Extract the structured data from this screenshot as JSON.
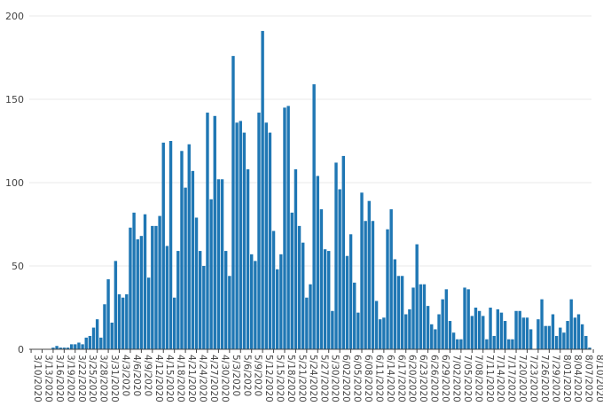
{
  "chart_data": {
    "type": "bar",
    "title": "",
    "xlabel": "",
    "ylabel": "",
    "ylim": [
      0,
      200
    ],
    "yticks": [
      0,
      50,
      100,
      150,
      200
    ],
    "grid": "horizontal",
    "bar_color": "#1f77b4",
    "start_date": "2020-03-10",
    "xtick_labels": [
      "3/10/2020",
      "3/13/2020",
      "3/16/2020",
      "3/19/2020",
      "3/22/2020",
      "3/25/2020",
      "3/28/2020",
      "3/31/2020",
      "4/3/2020",
      "4/6/2020",
      "4/9/2020",
      "4/12/2020",
      "4/15/2020",
      "4/18/2020",
      "4/21/2020",
      "4/24/2020",
      "4/27/2020",
      "4/30/2020",
      "5/3/2020",
      "5/6/2020",
      "5/9/2020",
      "5/12/2020",
      "5/15/2020",
      "5/18/2020",
      "5/21/2020",
      "5/24/2020",
      "5/27/2020",
      "5/30/2020",
      "6/02/2020",
      "6/05/2020",
      "6/08/2020",
      "6/11/2020",
      "6/14/2020",
      "6/17/2020",
      "6/20/2020",
      "6/23/2020",
      "6/26/2020",
      "6/29/2020",
      "7/02/2020",
      "7/05/2020",
      "7/08/2020",
      "7/11/2020",
      "7/14/2020",
      "7/17/2020",
      "7/20/2020",
      "7/23/2020",
      "7/26/2020",
      "7/29/2020",
      "8/01/2020",
      "8/04/2020",
      "8/07/2020",
      "8/10/2020"
    ],
    "values": [
      0,
      0,
      0,
      0,
      0,
      0,
      1,
      2,
      1,
      1,
      1,
      3,
      3,
      4,
      3,
      7,
      8,
      13,
      18,
      7,
      27,
      42,
      16,
      53,
      33,
      31,
      33,
      73,
      82,
      66,
      68,
      81,
      43,
      74,
      74,
      80,
      124,
      62,
      125,
      31,
      59,
      119,
      97,
      123,
      107,
      79,
      59,
      50,
      142,
      90,
      140,
      102,
      102,
      59,
      44,
      176,
      136,
      137,
      130,
      108,
      57,
      53,
      142,
      191,
      136,
      130,
      71,
      48,
      57,
      145,
      146,
      82,
      108,
      74,
      64,
      31,
      39,
      159,
      104,
      84,
      60,
      59,
      23,
      112,
      96,
      116,
      56,
      69,
      40,
      22,
      94,
      77,
      89,
      77,
      29,
      18,
      19,
      72,
      84,
      54,
      44,
      44,
      21,
      24,
      37,
      63,
      39,
      39,
      26,
      15,
      12,
      21,
      30,
      36,
      17,
      10,
      6,
      6,
      37,
      36,
      20,
      25,
      23,
      20,
      6,
      25,
      8,
      24,
      22,
      17,
      6,
      6,
      23,
      23,
      19,
      19,
      12,
      0,
      18,
      30,
      14,
      14,
      21,
      8,
      13,
      10,
      17,
      30,
      19,
      21,
      15,
      8,
      1
    ]
  }
}
